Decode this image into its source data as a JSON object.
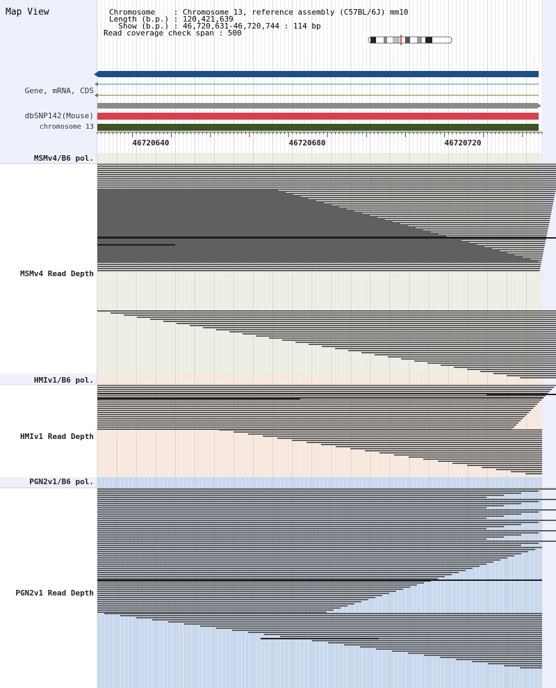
{
  "header": {
    "title": "Map View",
    "chromosome_line": "Chromosome    : Chromosome 13, reference assembly (C57BL/6J) mm10",
    "length_line": "Length (b.p.) : 120,421,639",
    "show_line": "  Show (b.p.) : 46,720,631-46,720,744 : 114 bp",
    "coverage_line": "Read coverage check span : 500"
  },
  "tracks": {
    "gene": "Gene, mRNA, CDS",
    "dbsnp": "dbSNP142(Mouse)",
    "chrom": "chromosome 13"
  },
  "ruler": {
    "labels": [
      "46720640",
      "46720680",
      "46720720"
    ]
  },
  "panels": {
    "msm_pol": "MSMv4/B6 pol.",
    "msm_depth": "MSMv4 Read Depth",
    "hmi_pol": "HMIv1/B6 pol.",
    "hmi_depth": "HMIv1 Read Depth",
    "pgn_pol": "PGN2v1/B6 pol.",
    "pgn_depth": "PGN2v1 Read Depth"
  },
  "colors": {
    "gene_blue": "#1f4e85",
    "snp_red": "#d9404f",
    "chrom_green": "#3e5422",
    "msm_bg": "#edf0e3",
    "hmi_bg": "#fbe9dd",
    "pgn_bg": "#c6d7ee",
    "read_gray": "#606060"
  }
}
